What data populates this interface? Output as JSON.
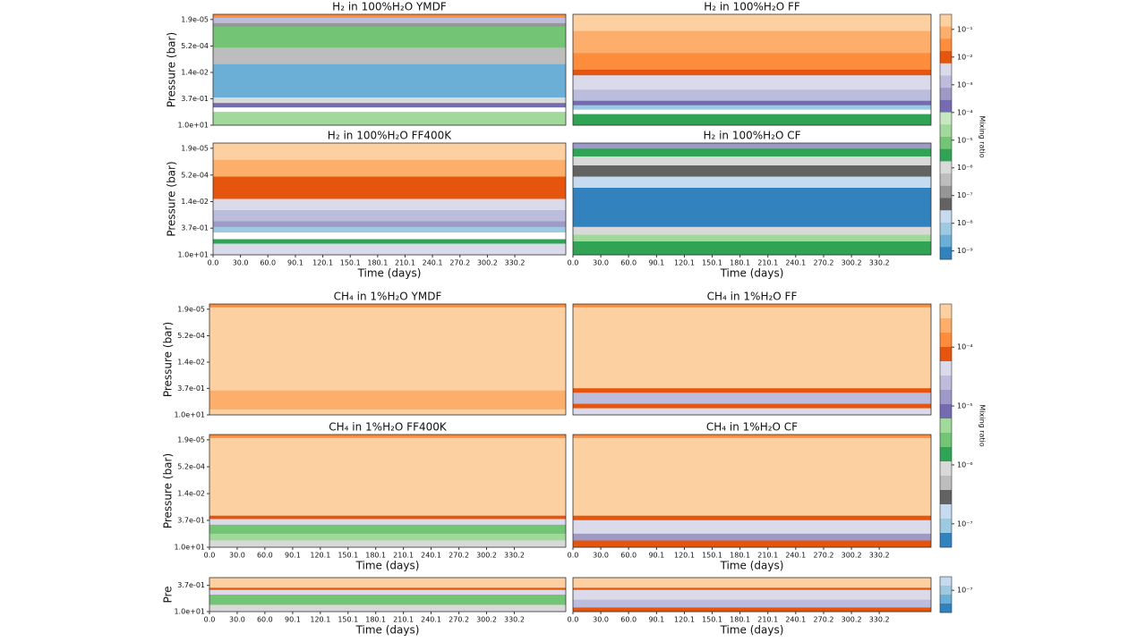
{
  "chart_data": [
    {
      "type": "contour",
      "title": "H₂ in 100%H₂O YMDF",
      "ylabel": "Pressure (bar)",
      "yscale": "log",
      "ylim": [
        10,
        1e-05
      ],
      "xlim": [
        0,
        386
      ],
      "colorbar": 0,
      "yticks": [
        {
          "value": 1.9e-05,
          "label": "1.9e-05"
        },
        {
          "value": 0.00052,
          "label": "5.2e-04"
        },
        {
          "value": 0.014,
          "label": "1.4e-02"
        },
        {
          "value": 0.37,
          "label": "3.7e-01"
        },
        {
          "value": 10,
          "label": "1.0e+01"
        }
      ]
    },
    {
      "type": "contour",
      "title": "H₂ in 100%H₂O FF",
      "yscale": "log",
      "ylim": [
        10,
        1e-05
      ],
      "xlim": [
        0,
        386
      ],
      "colorbar": 0
    },
    {
      "type": "contour",
      "title": "H₂ in 100%H₂O FF400K",
      "ylabel": "Pressure (bar)",
      "xlabel": "Time (days)",
      "yscale": "log",
      "ylim": [
        10,
        1e-05
      ],
      "xlim": [
        0,
        386
      ],
      "colorbar": 0,
      "yticks": [
        {
          "value": 1.9e-05,
          "label": "1.9e-05"
        },
        {
          "value": 0.00052,
          "label": "5.2e-04"
        },
        {
          "value": 0.014,
          "label": "1.4e-02"
        },
        {
          "value": 0.37,
          "label": "3.7e-01"
        },
        {
          "value": 10,
          "label": "1.0e+01"
        }
      ],
      "xticks": [
        {
          "value": 0,
          "label": "0.0"
        },
        {
          "value": 30,
          "label": "30.0"
        },
        {
          "value": 60,
          "label": "60.0"
        },
        90.1,
        120.1,
        150.1,
        180.1,
        210.1,
        240.1,
        270.2,
        300.2,
        330.2
      ]
    },
    {
      "type": "contour",
      "title": "H₂ in 100%H₂O CF",
      "xlabel": "Time (days)",
      "yscale": "log",
      "ylim": [
        10,
        1e-05
      ],
      "xlim": [
        0,
        386
      ],
      "colorbar": 0,
      "xticks": [
        {
          "value": 0,
          "label": "0.0"
        },
        {
          "value": 30,
          "label": "30.0"
        },
        {
          "value": 60,
          "label": "60.0"
        },
        90.1,
        120.1,
        150.1,
        180.1,
        210.1,
        240.1,
        270.2,
        300.2,
        330.2
      ]
    },
    {
      "type": "contour",
      "title": "CH₄ in 1%H₂O YMDF",
      "ylabel": "Pressure (bar)",
      "yscale": "log",
      "ylim": [
        10,
        1e-05
      ],
      "xlim": [
        0,
        386
      ],
      "colorbar": 1,
      "yticks": [
        {
          "value": 1.9e-05,
          "label": "1.9e-05"
        },
        {
          "value": 0.00052,
          "label": "5.2e-04"
        },
        {
          "value": 0.014,
          "label": "1.4e-02"
        },
        {
          "value": 0.37,
          "label": "3.7e-01"
        },
        {
          "value": 10,
          "label": "1.0e+01"
        }
      ]
    },
    {
      "type": "contour",
      "title": "CH₄ in 1%H₂O FF",
      "yscale": "log",
      "ylim": [
        10,
        1e-05
      ],
      "xlim": [
        0,
        386
      ],
      "colorbar": 1
    },
    {
      "type": "contour",
      "title": "CH₄ in 1%H₂O FF400K",
      "ylabel": "Pressure (bar)",
      "xlabel": "Time (days)",
      "yscale": "log",
      "ylim": [
        10,
        1e-05
      ],
      "xlim": [
        0,
        386
      ],
      "colorbar": 1,
      "yticks": [
        {
          "value": 1.9e-05,
          "label": "1.9e-05"
        },
        {
          "value": 0.00052,
          "label": "5.2e-04"
        },
        {
          "value": 0.014,
          "label": "1.4e-02"
        },
        {
          "value": 0.37,
          "label": "3.7e-01"
        },
        {
          "value": 10,
          "label": "1.0e+01"
        }
      ],
      "xticks": [
        {
          "value": 0,
          "label": "0.0"
        },
        {
          "value": 30,
          "label": "30.0"
        },
        {
          "value": 60,
          "label": "60.0"
        },
        90.1,
        120.1,
        150.1,
        180.1,
        210.1,
        240.1,
        270.2,
        300.2,
        330.2
      ]
    },
    {
      "type": "contour",
      "title": "CH₄ in 1%H₂O CF",
      "xlabel": "Time (days)",
      "yscale": "log",
      "ylim": [
        10,
        1e-05
      ],
      "xlim": [
        0,
        386
      ],
      "colorbar": 1,
      "xticks": [
        {
          "value": 0,
          "label": "0.0"
        },
        {
          "value": 30,
          "label": "30.0"
        },
        {
          "value": 60,
          "label": "60.0"
        },
        90.1,
        120.1,
        150.1,
        180.1,
        210.1,
        240.1,
        270.2,
        300.2,
        330.2
      ]
    },
    {
      "type": "contour",
      "ylabel": "Pre",
      "xlabel": "Time (days)",
      "yscale": "log",
      "ylim": [
        10,
        0.14
      ],
      "xlim": [
        0,
        386
      ],
      "colorbar": 2,
      "yticks": [
        {
          "value": 0.37,
          "label": "3.7e-01"
        },
        {
          "value": 10,
          "label": "1.0e+01"
        }
      ],
      "xticks": [
        {
          "value": 0,
          "label": "0.0"
        },
        {
          "value": 30,
          "label": "30.0"
        },
        {
          "value": 60,
          "label": "60.0"
        },
        90.1,
        120.1,
        150.1,
        180.1,
        210.1,
        240.1,
        270.2,
        300.2,
        330.2
      ]
    },
    {
      "type": "contour",
      "xlabel": "Time (days)",
      "yscale": "log",
      "ylim": [
        10,
        0.14
      ],
      "xlim": [
        0,
        386
      ],
      "colorbar": 2,
      "xticks": [
        {
          "value": 0,
          "label": "0.0"
        },
        {
          "value": 30,
          "label": "30.0"
        },
        {
          "value": 60,
          "label": "60.0"
        },
        90.1,
        120.1,
        150.1,
        180.1,
        210.1,
        240.1,
        270.2,
        300.2,
        330.2
      ]
    }
  ],
  "colorbars": [
    {
      "label": "Mixing ratio",
      "scale": "log",
      "clim": [
        5e-10,
        0.35
      ],
      "colors": [
        "#fdd0a2",
        "#fdae6b",
        "#fd8d3c",
        "#e6550d",
        "#dadaeb",
        "#bcbddc",
        "#9e9ac8",
        "#756bb1",
        "#c7e9c0",
        "#a1d99b",
        "#74c476",
        "#31a354",
        "#d9d9d9",
        "#bdbdbd",
        "#969696",
        "#636363",
        "#c6dbef",
        "#9ecae1",
        "#6baed6",
        "#3182bd"
      ],
      "ticks": [
        {
          "value": 0.1,
          "label": "10⁻¹"
        },
        {
          "value": 0.01,
          "label": "10⁻²"
        },
        {
          "value": 0.001,
          "label": "10⁻³"
        },
        {
          "value": 0.0001,
          "label": "10⁻⁴"
        },
        {
          "value": 1e-05,
          "label": "10⁻⁵"
        },
        {
          "value": 1e-06,
          "label": "10⁻⁶"
        },
        {
          "value": 1e-07,
          "label": "10⁻⁷"
        },
        {
          "value": 1e-08,
          "label": "10⁻⁸"
        },
        {
          "value": 1e-09,
          "label": "10⁻⁹"
        }
      ]
    },
    {
      "label": "Mixing ratio",
      "scale": "log",
      "clim": [
        4e-08,
        0.00054
      ],
      "colors": [
        "#fdd0a2",
        "#fdae6b",
        "#fd8d3c",
        "#e6550d",
        "#dadaeb",
        "#bcbddc",
        "#9e9ac8",
        "#756bb1",
        "#a1d99b",
        "#74c476",
        "#31a354",
        "#d9d9d9",
        "#bdbdbd",
        "#636363",
        "#c6dbef",
        "#9ecae1",
        "#3182bd"
      ],
      "ticks": [
        {
          "value": 0.0001,
          "label": "10⁻⁴"
        },
        {
          "value": 1e-05,
          "label": "10⁻⁵"
        },
        {
          "value": 1e-06,
          "label": "10⁻⁶"
        },
        {
          "value": 1e-07,
          "label": "10⁻⁷"
        }
      ]
    },
    {
      "scale": "log",
      "clim": [
        4.2e-08,
        1.7e-07
      ],
      "colors": [
        "#c6dbef",
        "#9ecae1",
        "#6baed6",
        "#3182bd"
      ],
      "ticks": [
        {
          "value": 1e-07,
          "label": "10⁻⁷"
        }
      ]
    }
  ]
}
